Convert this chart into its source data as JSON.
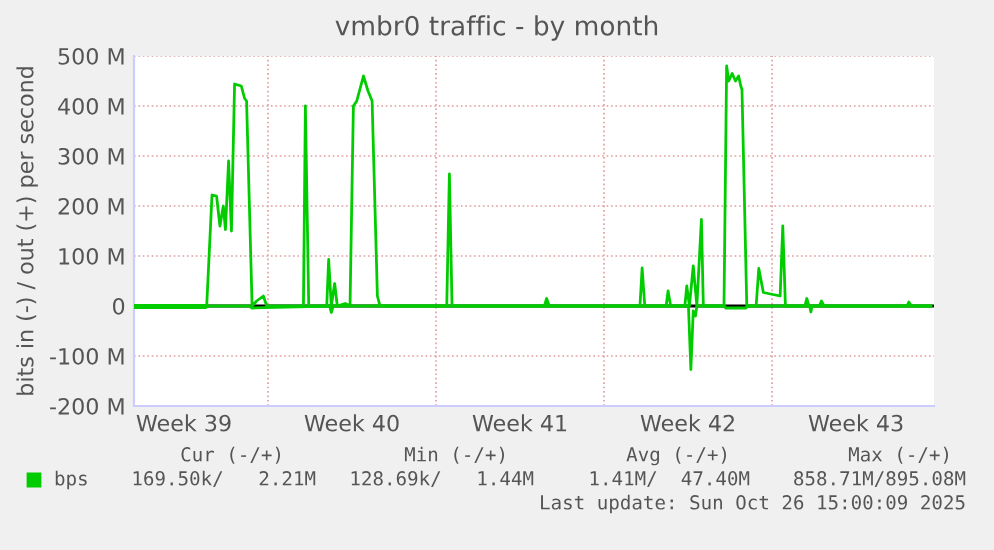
{
  "chart_data": {
    "type": "line",
    "title": "vmbr0 traffic - by month",
    "ylabel": "bits in (-) / out (+) per second",
    "xlim": [
      "2025-09-23T10:00",
      "2025-10-26T17:55"
    ],
    "xticks": [
      {
        "value": "2025-09-25T12:00",
        "label": "Week 39"
      },
      {
        "value": "2025-09-29",
        "label": null
      },
      {
        "value": "2025-10-02T12:00",
        "label": "Week 40"
      },
      {
        "value": "2025-10-06",
        "label": null
      },
      {
        "value": "2025-10-09T12:00",
        "label": "Week 41"
      },
      {
        "value": "2025-10-13",
        "label": null
      },
      {
        "value": "2025-10-16T12:00",
        "label": "Week 42"
      },
      {
        "value": "2025-10-20",
        "label": null
      },
      {
        "value": "2025-10-23T12:00",
        "label": "Week 43"
      }
    ],
    "ylim": [
      -200,
      500
    ],
    "yticks": [
      {
        "value": -200,
        "label": "-200 M"
      },
      {
        "value": -100,
        "label": "-100 M"
      },
      {
        "value": 0,
        "label": "0"
      },
      {
        "value": 100,
        "label": "100 M"
      },
      {
        "value": 200,
        "label": "200 M"
      },
      {
        "value": 300,
        "label": "300 M"
      },
      {
        "value": 400,
        "label": "400 M"
      },
      {
        "value": 500,
        "label": "500 M"
      }
    ],
    "grid": true,
    "legend": "bottom left",
    "marker": "none",
    "line_style": "solid",
    "series": [
      {
        "name": "bps",
        "color": "#00cc00",
        "x": [
          "2025-09-23T10:00",
          "2025-09-26T10:43",
          "2025-09-26T16:00",
          "2025-09-26T20:34",
          "2025-09-26T23:55",
          "2025-09-27T03:17",
          "2025-09-27T05:26",
          "2025-09-27T08:34",
          "2025-09-27T11:26",
          "2025-09-27T14:34",
          "2025-09-27T21:17",
          "2025-09-28T00:38",
          "2025-09-28T02:34",
          "2025-09-28T08:05",
          "2025-09-28T12:38",
          "2025-09-28T19:22",
          "2025-09-28T22:43",
          "2025-09-30T11:26",
          "2025-09-30T13:22",
          "2025-09-30T16:43",
          "2025-10-01T10:43",
          "2025-10-01T12:38",
          "2025-10-01T15:17",
          "2025-10-01T18:38",
          "2025-10-01T21:17",
          "2025-10-02T05:12",
          "2025-10-02T10:00",
          "2025-10-02T13:22",
          "2025-10-02T16:43",
          "2025-10-02T23:26",
          "2025-10-03T04:00",
          "2025-10-03T08:05",
          "2025-10-03T13:22",
          "2025-10-03T16:00",
          "2025-10-06T10:43",
          "2025-10-06T13:22",
          "2025-10-06T16:00",
          "2025-10-10T12:24",
          "2025-10-10T14:34",
          "2025-10-10T17:12",
          "2025-10-14T11:55",
          "2025-10-14T14:05",
          "2025-10-14T16:43",
          "2025-10-15T14:05",
          "2025-10-15T16:00",
          "2025-10-15T18:38",
          "2025-10-16T08:48",
          "2025-10-16T10:43",
          "2025-10-16T13:22",
          "2025-10-16T17:12",
          "2025-10-16T20:48",
          "2025-10-17T01:22",
          "2025-10-17T03:17",
          "2025-10-17T23:55",
          "2025-10-18T02:34",
          "2025-10-18T04:43",
          "2025-10-18T08:05",
          "2025-10-18T11:26",
          "2025-10-18T14:34",
          "2025-10-18T16:43",
          "2025-10-18T17:55",
          "2025-10-18T22:43",
          "2025-10-19T08:05",
          "2025-10-19T10:43",
          "2025-10-19T15:17",
          "2025-10-20T08:05",
          "2025-10-20T10:43",
          "2025-10-20T13:22",
          "2025-10-21T08:48",
          "2025-10-21T10:43",
          "2025-10-21T12:53",
          "2025-10-21T23:12",
          "2025-10-22T01:22",
          "2025-10-22T04:00",
          "2025-10-25T14:48",
          "2025-10-25T16:43",
          "2025-10-25T19:36",
          "2025-10-26T14:48"
        ],
        "values": [
          1,
          1,
          222,
          220,
          160,
          200,
          153,
          290,
          150,
          444,
          440,
          415,
          410,
          0,
          10,
          20,
          0,
          0,
          400,
          0,
          0,
          93,
          0,
          45,
          0,
          5,
          0,
          400,
          410,
          460,
          430,
          410,
          20,
          0,
          0,
          264,
          0,
          0,
          15,
          0,
          0,
          76,
          0,
          0,
          30,
          0,
          0,
          40,
          0,
          80,
          0,
          173,
          0,
          0,
          480,
          450,
          465,
          450,
          460,
          440,
          433,
          0,
          0,
          75,
          27,
          20,
          160,
          0,
          0,
          15,
          0,
          0,
          10,
          0,
          0,
          8,
          0,
          0
        ]
      },
      {
        "color": "#00cc00",
        "x": [
          "2025-09-23T10:00",
          "2025-09-26T10:00",
          "2025-09-26T11:12",
          "2025-09-28T05:12",
          "2025-09-28T07:36",
          "2025-10-01T13:36",
          "2025-10-01T15:17",
          "2025-10-01T17:12",
          "2025-10-16T12:24",
          "2025-10-16T14:48",
          "2025-10-16T17:12",
          "2025-10-16T19:22",
          "2025-10-16T20:48",
          "2025-10-18T00:24",
          "2025-10-18T01:36",
          "2025-10-18T22:00",
          "2025-10-18T23:12",
          "2025-10-21T13:36",
          "2025-10-21T14:48",
          "2025-10-21T16:00",
          "2025-10-26T14:48"
        ],
        "values": [
          -3,
          -3,
          0,
          0,
          -4,
          0,
          -13,
          0,
          0,
          -127,
          -10,
          -20,
          0,
          0,
          -4,
          -4,
          0,
          0,
          -12,
          0,
          0
        ]
      }
    ],
    "ref_lines": [
      {
        "axis": "y",
        "value": 0,
        "color": "#000000"
      }
    ],
    "annotations": [
      "Cur (-/+)",
      "Min (-/+)",
      "Avg (-/+)",
      "Max (-/+)",
      "169.50k/   2.21M",
      "128.69k/   1.44M",
      "1.41M/  47.40M",
      "858.71M/895.08M",
      "Last update: Sun Oct 26 15:00:09 2025"
    ]
  }
}
